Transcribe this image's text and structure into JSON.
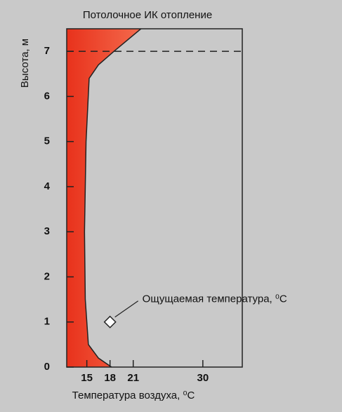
{
  "chart_data": {
    "type": "line",
    "title": "Потолочное ИК отопление",
    "x_label": "Температура воздуха, ⁰C",
    "y_label": "Высота, м",
    "series": [
      {
        "name": "Температура воздуха",
        "color": "#e8321c",
        "x": [
          18.2,
          16.5,
          15.2,
          14.8,
          14.7,
          14.9,
          15.3,
          16.5,
          18.5,
          22
        ],
        "values": [
          0,
          0.2,
          0.5,
          1.5,
          3,
          5,
          6.4,
          6.7,
          7,
          7.5
        ]
      }
    ],
    "reference_line": 7,
    "marker": {
      "x": 18,
      "y": 1,
      "label": "Ощущаемая температура, ⁰C"
    },
    "xlim": [
      12.4,
      35.1
    ],
    "ylim": [
      0,
      7.5
    ],
    "xticks": [
      15,
      18,
      21,
      30
    ],
    "yticks": [
      0,
      1,
      2,
      3,
      4,
      5,
      6,
      7
    ]
  }
}
